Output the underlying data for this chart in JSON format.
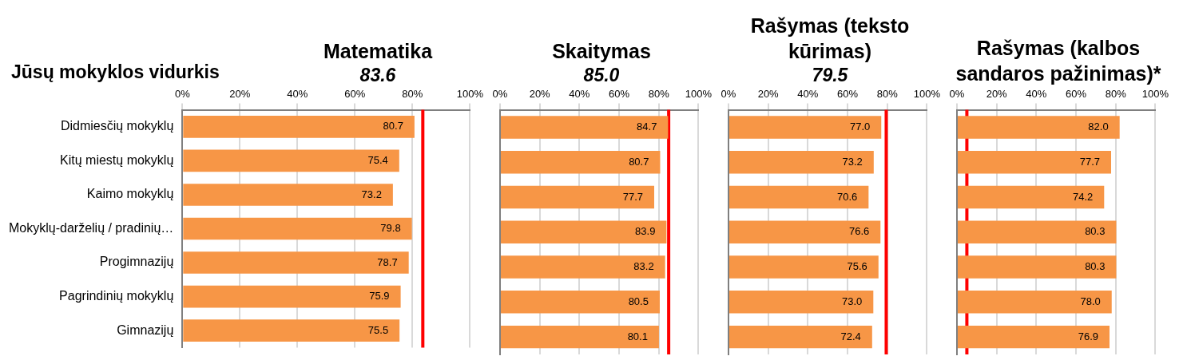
{
  "chart_data": [
    {
      "type": "bar",
      "orientation": "horizontal",
      "title": "Matematika",
      "annotations": [
        "Jūsų mokyklos vidurkis"
      ],
      "categories": [
        "Didmiesčių mokyklų",
        "Kitų miestų mokyklų",
        "Kaimo mokyklų",
        "Mokyklų-darželių / pradinių…",
        "Progimnazijų",
        "Pagrindinių mokyklų",
        "Gimnazijų"
      ],
      "color": "#f79646",
      "values": [
        80.7,
        75.4,
        73.2,
        79.8,
        78.7,
        75.9,
        75.5
      ],
      "value_labels": [
        "80.7",
        "75.4",
        "73.2",
        "79.8",
        "78.7",
        "75.9",
        "75.5"
      ],
      "xlim": [
        0,
        100
      ],
      "xticks": [
        {
          "value": 0,
          "label": "0%"
        },
        {
          "value": 20,
          "label": "20%"
        },
        {
          "value": 40,
          "label": "40%"
        },
        {
          "value": 60,
          "label": "60%"
        },
        {
          "value": 80,
          "label": "80%"
        },
        {
          "value": 100,
          "label": "100%"
        }
      ],
      "grid": "x",
      "legend": false,
      "ref_lines": [
        {
          "axis": "x",
          "value": 83.6,
          "label": "83.6",
          "color": "#ff0000"
        }
      ]
    },
    {
      "type": "bar",
      "orientation": "horizontal",
      "title": "Skaitymas",
      "categories": [
        null,
        null,
        null,
        null,
        null,
        null,
        null
      ],
      "tick_labels": "x",
      "color": "#f79646",
      "values": [
        84.7,
        80.7,
        77.7,
        83.9,
        83.2,
        80.5,
        80.1
      ],
      "value_labels": [
        "84.7",
        "80.7",
        "77.7",
        "83.9",
        "83.2",
        "80.5",
        "80.1"
      ],
      "xlim": [
        0,
        100
      ],
      "xticks": [
        {
          "value": 0,
          "label": "0%"
        },
        {
          "value": 20,
          "label": "20%"
        },
        {
          "value": 40,
          "label": "40%"
        },
        {
          "value": 60,
          "label": "60%"
        },
        {
          "value": 80,
          "label": "80%"
        },
        {
          "value": 100,
          "label": "100%"
        }
      ],
      "grid": "x",
      "legend": false,
      "ref_lines": [
        {
          "axis": "x",
          "value": 85.0,
          "label": "85.0",
          "color": "#ff0000"
        }
      ]
    },
    {
      "type": "bar",
      "orientation": "horizontal",
      "title": "Rašymas (teksto kūrimas)",
      "categories": [
        null,
        null,
        null,
        null,
        null,
        null,
        null
      ],
      "tick_labels": "x",
      "color": "#f79646",
      "values": [
        77.0,
        73.2,
        70.6,
        76.6,
        75.6,
        73.0,
        72.4
      ],
      "value_labels": [
        "77.0",
        "73.2",
        "70.6",
        "76.6",
        "75.6",
        "73.0",
        "72.4"
      ],
      "xlim": [
        0,
        100
      ],
      "xticks": [
        {
          "value": 0,
          "label": "0%"
        },
        {
          "value": 20,
          "label": "20%"
        },
        {
          "value": 40,
          "label": "40%"
        },
        {
          "value": 60,
          "label": "60%"
        },
        {
          "value": 80,
          "label": "80%"
        },
        {
          "value": 100,
          "label": "100%"
        }
      ],
      "grid": "x",
      "legend": false,
      "ref_lines": [
        {
          "axis": "x",
          "value": 79.5,
          "label": "79.5",
          "color": "#ff0000"
        }
      ]
    },
    {
      "type": "bar",
      "orientation": "horizontal",
      "title": "Rašymas (kalbos sandaros pažinimas)*",
      "categories": [
        null,
        null,
        null,
        null,
        null,
        null,
        null
      ],
      "tick_labels": "x",
      "color": "#f79646",
      "values": [
        82.0,
        77.7,
        74.2,
        80.3,
        80.3,
        78.0,
        76.9
      ],
      "value_labels": [
        "82.0",
        "77.7",
        "74.2",
        "80.3",
        "80.3",
        "78.0",
        "76.9"
      ],
      "xlim": [
        0,
        100
      ],
      "xticks": [
        {
          "value": 0,
          "label": "0%"
        },
        {
          "value": 20,
          "label": "20%"
        },
        {
          "value": 40,
          "label": "40%"
        },
        {
          "value": 60,
          "label": "60%"
        },
        {
          "value": 80,
          "label": "80%"
        },
        {
          "value": 100,
          "label": "100%"
        }
      ],
      "grid": "x",
      "legend": false,
      "ref_lines": [
        {
          "axis": "x",
          "value": 5,
          "color": "#ff0000"
        }
      ]
    }
  ]
}
